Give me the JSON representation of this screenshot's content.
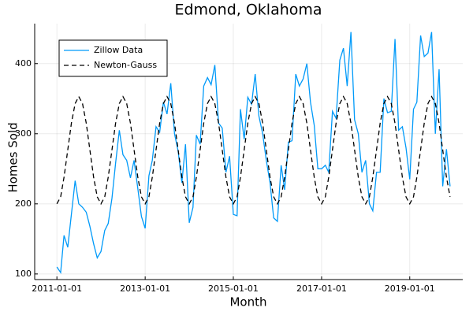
{
  "chart_data": {
    "type": "line",
    "title": "Edmond, Oklahoma",
    "xlabel": "Month",
    "ylabel": "Homes Sold",
    "x": [
      "2011-01-01",
      "2011-02-01",
      "2011-03-01",
      "2011-04-01",
      "2011-05-01",
      "2011-06-01",
      "2011-07-01",
      "2011-08-01",
      "2011-09-01",
      "2011-10-01",
      "2011-11-01",
      "2011-12-01",
      "2012-01-01",
      "2012-02-01",
      "2012-03-01",
      "2012-04-01",
      "2012-05-01",
      "2012-06-01",
      "2012-07-01",
      "2012-08-01",
      "2012-09-01",
      "2012-10-01",
      "2012-11-01",
      "2012-12-01",
      "2013-01-01",
      "2013-02-01",
      "2013-03-01",
      "2013-04-01",
      "2013-05-01",
      "2013-06-01",
      "2013-07-01",
      "2013-08-01",
      "2013-09-01",
      "2013-10-01",
      "2013-11-01",
      "2013-12-01",
      "2014-01-01",
      "2014-02-01",
      "2014-03-01",
      "2014-04-01",
      "2014-05-01",
      "2014-06-01",
      "2014-07-01",
      "2014-08-01",
      "2014-09-01",
      "2014-10-01",
      "2014-11-01",
      "2014-12-01",
      "2015-01-01",
      "2015-02-01",
      "2015-03-01",
      "2015-04-01",
      "2015-05-01",
      "2015-06-01",
      "2015-07-01",
      "2015-08-01",
      "2015-09-01",
      "2015-10-01",
      "2015-11-01",
      "2015-12-01",
      "2016-01-01",
      "2016-02-01",
      "2016-03-01",
      "2016-04-01",
      "2016-05-01",
      "2016-06-01",
      "2016-07-01",
      "2016-08-01",
      "2016-09-01",
      "2016-10-01",
      "2016-11-01",
      "2016-12-01",
      "2017-01-01",
      "2017-02-01",
      "2017-03-01",
      "2017-04-01",
      "2017-05-01",
      "2017-06-01",
      "2017-07-01",
      "2017-08-01",
      "2017-09-01",
      "2017-10-01",
      "2017-11-01",
      "2017-12-01",
      "2018-01-01",
      "2018-02-01",
      "2018-03-01",
      "2018-04-01",
      "2018-05-01",
      "2018-06-01",
      "2018-07-01",
      "2018-08-01",
      "2018-09-01",
      "2018-10-01",
      "2018-11-01",
      "2018-12-01",
      "2019-01-01",
      "2019-02-01",
      "2019-03-01",
      "2019-04-01",
      "2019-05-01",
      "2019-06-01",
      "2019-07-01",
      "2019-08-01",
      "2019-09-01",
      "2019-10-01",
      "2019-11-01",
      "2019-12-01"
    ],
    "series": [
      {
        "name": "Zillow Data",
        "color": "#009af9",
        "dash": "solid",
        "values": [
          110,
          102,
          155,
          138,
          185,
          233,
          200,
          195,
          188,
          168,
          143,
          123,
          132,
          162,
          172,
          208,
          258,
          305,
          270,
          262,
          237,
          262,
          222,
          182,
          165,
          240,
          262,
          310,
          302,
          345,
          328,
          372,
          300,
          275,
          230,
          285,
          173,
          195,
          298,
          285,
          368,
          380,
          370,
          398,
          315,
          308,
          245,
          268,
          185,
          183,
          335,
          292,
          352,
          342,
          385,
          325,
          300,
          262,
          230,
          180,
          175,
          255,
          220,
          288,
          290,
          385,
          368,
          378,
          400,
          345,
          312,
          250,
          250,
          255,
          245,
          332,
          322,
          405,
          422,
          368,
          445,
          320,
          300,
          245,
          262,
          200,
          190,
          245,
          245,
          350,
          330,
          332,
          435,
          305,
          310,
          280,
          235,
          335,
          345,
          440,
          410,
          415,
          445,
          300,
          392,
          225,
          278,
          225
        ]
      },
      {
        "name": "Newton-Gauss",
        "color": "#000000",
        "dash": "dashed",
        "values": [
          200,
          210,
          238,
          277,
          315,
          343,
          353,
          343,
          315,
          277,
          238,
          210,
          200,
          210,
          238,
          277,
          315,
          343,
          353,
          343,
          315,
          277,
          238,
          210,
          200,
          210,
          238,
          277,
          315,
          343,
          353,
          343,
          315,
          277,
          238,
          210,
          200,
          210,
          238,
          277,
          315,
          343,
          353,
          343,
          315,
          277,
          238,
          210,
          200,
          210,
          238,
          277,
          315,
          343,
          353,
          343,
          315,
          277,
          238,
          210,
          200,
          210,
          238,
          277,
          315,
          343,
          353,
          343,
          315,
          277,
          238,
          210,
          200,
          210,
          238,
          277,
          315,
          343,
          353,
          343,
          315,
          277,
          238,
          210,
          200,
          210,
          238,
          277,
          315,
          343,
          353,
          343,
          315,
          277,
          238,
          210,
          200,
          210,
          238,
          277,
          315,
          343,
          353,
          343,
          315,
          277,
          238,
          210
        ]
      }
    ],
    "xlim": [
      "2010-07-01",
      "2020-03-15"
    ],
    "xticks": [
      "2011-01-01",
      "2013-01-01",
      "2015-01-01",
      "2017-01-01",
      "2019-01-01"
    ],
    "ylim": [
      92,
      457
    ],
    "yticks": [
      100,
      200,
      300,
      400
    ],
    "grid": true,
    "legend": "top-left"
  }
}
